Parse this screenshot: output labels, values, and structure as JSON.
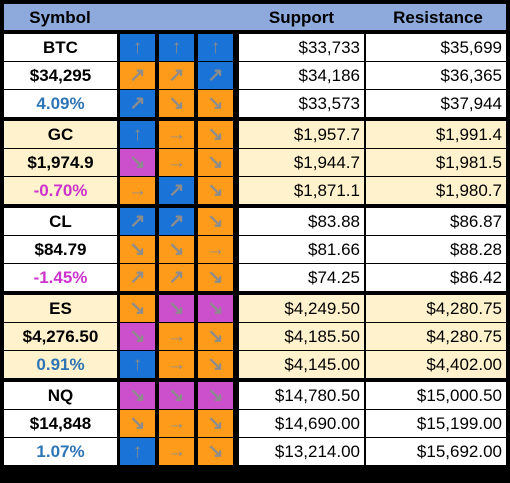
{
  "header": {
    "symbol": "Symbol",
    "support": "Support",
    "resistance": "Resistance"
  },
  "colors": {
    "header_bg": "#8ea9db",
    "row_white": "#ffffff",
    "row_cream": "#fff2cc",
    "blue": "#1a73d6",
    "orange": "#ff9b1a",
    "pink": "#cc4fcb",
    "positive": "#2e75b6",
    "negative": "#cc33cc"
  },
  "blocks": [
    {
      "symbol": "BTC",
      "price": "$34,295",
      "change": "4.09%",
      "change_sign": "positive",
      "bg": "white",
      "rows": [
        {
          "arrows": [
            {
              "dir": "up",
              "color": "blue"
            },
            {
              "dir": "up",
              "color": "blue"
            },
            {
              "dir": "up",
              "color": "blue"
            }
          ],
          "support": "$33,733",
          "resistance": "$35,699"
        },
        {
          "arrows": [
            {
              "dir": "up-right",
              "color": "orange"
            },
            {
              "dir": "up-right",
              "color": "orange"
            },
            {
              "dir": "up-right",
              "color": "blue"
            }
          ],
          "support": "$34,186",
          "resistance": "$36,365"
        },
        {
          "arrows": [
            {
              "dir": "up-right",
              "color": "blue"
            },
            {
              "dir": "down-right",
              "color": "orange"
            },
            {
              "dir": "down-right",
              "color": "orange"
            }
          ],
          "support": "$33,573",
          "resistance": "$37,944"
        }
      ]
    },
    {
      "symbol": "GC",
      "price": "$1,974.9",
      "change": "-0.70%",
      "change_sign": "negative",
      "bg": "cream",
      "rows": [
        {
          "arrows": [
            {
              "dir": "up",
              "color": "blue"
            },
            {
              "dir": "right",
              "color": "orange"
            },
            {
              "dir": "down-right",
              "color": "orange"
            }
          ],
          "support": "$1,957.7",
          "resistance": "$1,991.4"
        },
        {
          "arrows": [
            {
              "dir": "down-right",
              "color": "pink"
            },
            {
              "dir": "right",
              "color": "orange"
            },
            {
              "dir": "down-right",
              "color": "orange"
            }
          ],
          "support": "$1,944.7",
          "resistance": "$1,981.5"
        },
        {
          "arrows": [
            {
              "dir": "right",
              "color": "orange"
            },
            {
              "dir": "up-right",
              "color": "blue"
            },
            {
              "dir": "down-right",
              "color": "orange"
            }
          ],
          "support": "$1,871.1",
          "resistance": "$1,980.7"
        }
      ]
    },
    {
      "symbol": "CL",
      "price": "$84.79",
      "change": "-1.45%",
      "change_sign": "negative",
      "bg": "white",
      "rows": [
        {
          "arrows": [
            {
              "dir": "up-right",
              "color": "blue"
            },
            {
              "dir": "up-right",
              "color": "blue"
            },
            {
              "dir": "down-right",
              "color": "orange"
            }
          ],
          "support": "$83.88",
          "resistance": "$86.87"
        },
        {
          "arrows": [
            {
              "dir": "down-right",
              "color": "orange"
            },
            {
              "dir": "down-right",
              "color": "orange"
            },
            {
              "dir": "right",
              "color": "orange"
            }
          ],
          "support": "$81.66",
          "resistance": "$88.28"
        },
        {
          "arrows": [
            {
              "dir": "up-right",
              "color": "orange"
            },
            {
              "dir": "up-right",
              "color": "orange"
            },
            {
              "dir": "down-right",
              "color": "orange"
            }
          ],
          "support": "$74.25",
          "resistance": "$86.42"
        }
      ]
    },
    {
      "symbol": "ES",
      "price": "$4,276.50",
      "change": "0.91%",
      "change_sign": "positive",
      "bg": "cream",
      "rows": [
        {
          "arrows": [
            {
              "dir": "down-right",
              "color": "orange"
            },
            {
              "dir": "down-right",
              "color": "pink"
            },
            {
              "dir": "down-right",
              "color": "pink"
            }
          ],
          "support": "$4,249.50",
          "resistance": "$4,280.75"
        },
        {
          "arrows": [
            {
              "dir": "down-right",
              "color": "pink"
            },
            {
              "dir": "right",
              "color": "orange"
            },
            {
              "dir": "down-right",
              "color": "orange"
            }
          ],
          "support": "$4,185.50",
          "resistance": "$4,280.75"
        },
        {
          "arrows": [
            {
              "dir": "up",
              "color": "blue"
            },
            {
              "dir": "right",
              "color": "orange"
            },
            {
              "dir": "down-right",
              "color": "orange"
            }
          ],
          "support": "$4,145.00",
          "resistance": "$4,402.00"
        }
      ]
    },
    {
      "symbol": "NQ",
      "price": "$14,848",
      "change": "1.07%",
      "change_sign": "positive",
      "bg": "white",
      "rows": [
        {
          "arrows": [
            {
              "dir": "down-right",
              "color": "pink"
            },
            {
              "dir": "down-right",
              "color": "pink"
            },
            {
              "dir": "down-right",
              "color": "pink"
            }
          ],
          "support": "$14,780.50",
          "resistance": "$15,000.50"
        },
        {
          "arrows": [
            {
              "dir": "down-right",
              "color": "orange"
            },
            {
              "dir": "right",
              "color": "orange"
            },
            {
              "dir": "down-right",
              "color": "orange"
            }
          ],
          "support": "$14,690.00",
          "resistance": "$15,199.00"
        },
        {
          "arrows": [
            {
              "dir": "up",
              "color": "blue"
            },
            {
              "dir": "right",
              "color": "orange"
            },
            {
              "dir": "down-right",
              "color": "orange"
            }
          ],
          "support": "$13,214.00",
          "resistance": "$15,692.00"
        }
      ]
    }
  ]
}
